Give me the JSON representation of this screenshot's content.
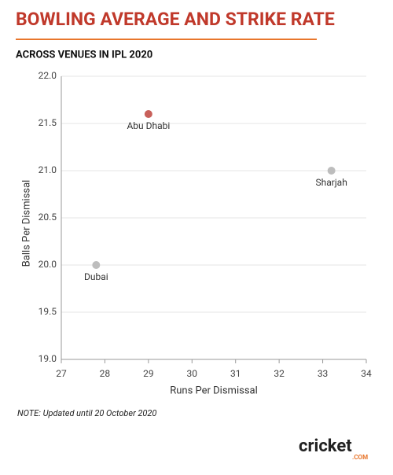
{
  "chart_data": {
    "type": "scatter",
    "title": "BOWLING AVERAGE AND STRIKE RATE",
    "subtitle": "ACROSS VENUES IN IPL 2020",
    "x_label": "Runs Per Dismissal",
    "y_label": "Balls Per Dismissal",
    "note": "NOTE: Updated until 20 October 2020",
    "logo": {
      "main": "cricket",
      "sub": ".COM"
    },
    "series": [
      {
        "name": "Abu Dhabi",
        "color": "#c8605a",
        "x": [
          29.0
        ],
        "values": [
          21.6
        ]
      },
      {
        "name": "Sharjah",
        "color": "#bdbdbd",
        "x": [
          33.2
        ],
        "values": [
          21.0
        ]
      },
      {
        "name": "Dubai",
        "color": "#bdbdbd",
        "x": [
          27.8
        ],
        "values": [
          20.0
        ]
      }
    ],
    "xlim": [
      27,
      34
    ],
    "xticks": [
      27,
      28,
      29,
      30,
      31,
      32,
      33,
      34
    ],
    "ylim": [
      19,
      22
    ],
    "yticks": [
      {
        "value": 19,
        "label": "19.0"
      },
      19.5,
      {
        "value": 20,
        "label": "20.0"
      },
      20.5,
      {
        "value": 21,
        "label": "21.0"
      },
      21.5,
      {
        "value": 22,
        "label": "22.0"
      }
    ],
    "grid": true
  }
}
